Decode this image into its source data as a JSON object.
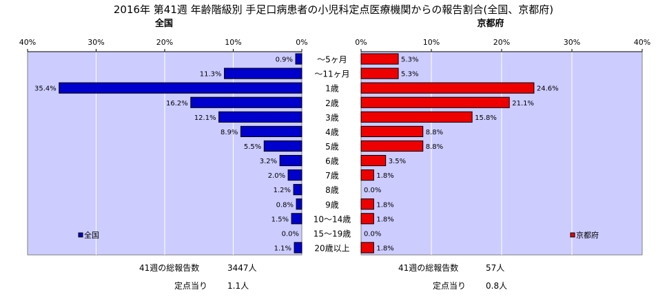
{
  "title": "2016年 第41週 年齢階級別 手足口病患者の小児科定点医療機関からの報告割合(全国、京都府)",
  "colors": {
    "plot_bg": "#ccccff",
    "national_bar": "#0000cc",
    "kyoto_bar": "#ee0000",
    "bar_edge": "#000000"
  },
  "chart_data": [
    {
      "type": "bar",
      "orientation": "horizontal",
      "direction": "right-to-left",
      "title": "全国",
      "legend": "全国",
      "legend_position": "bottom-left",
      "xlim": [
        0,
        40
      ],
      "x_ticks": [
        "40%",
        "30%",
        "20%",
        "10%",
        "0%"
      ],
      "categories": [
        "～5ヶ月",
        "～11ヶ月",
        "1歳",
        "2歳",
        "3歳",
        "4歳",
        "5歳",
        "6歳",
        "7歳",
        "8歳",
        "9歳",
        "10～14歳",
        "15～19歳",
        "20歳以上"
      ],
      "values": [
        0.9,
        11.3,
        35.4,
        16.2,
        12.1,
        8.9,
        5.5,
        3.2,
        2.0,
        1.2,
        0.8,
        1.5,
        0.0,
        1.1
      ],
      "labels": [
        "0.9%",
        "11.3%",
        "35.4%",
        "16.2%",
        "12.1%",
        "8.9%",
        "5.5%",
        "3.2%",
        "2.0%",
        "1.2%",
        "0.8%",
        "1.5%",
        "0.0%",
        "1.1%"
      ],
      "grid": true
    },
    {
      "type": "bar",
      "orientation": "horizontal",
      "direction": "left-to-right",
      "title": "京都府",
      "legend": "京都府",
      "legend_position": "bottom-right",
      "xlim": [
        0,
        40
      ],
      "x_ticks": [
        "0%",
        "10%",
        "20%",
        "30%",
        "40%"
      ],
      "categories": [
        "～5ヶ月",
        "～11ヶ月",
        "1歳",
        "2歳",
        "3歳",
        "4歳",
        "5歳",
        "6歳",
        "7歳",
        "8歳",
        "9歳",
        "10～14歳",
        "15～19歳",
        "20歳以上"
      ],
      "values": [
        5.3,
        5.3,
        24.6,
        21.1,
        15.8,
        8.8,
        8.8,
        3.5,
        1.8,
        0.0,
        1.8,
        1.8,
        0.0,
        1.8
      ],
      "labels": [
        "5.3%",
        "5.3%",
        "24.6%",
        "21.1%",
        "15.8%",
        "8.8%",
        "8.8%",
        "3.5%",
        "1.8%",
        "0.0%",
        "1.8%",
        "1.8%",
        "0.0%",
        "1.8%"
      ],
      "grid": true
    }
  ],
  "footer": {
    "national": {
      "total_label": "41週の総報告数",
      "total_value": "3447人",
      "per_label": "定点当り",
      "per_value": "1.1人"
    },
    "kyoto": {
      "total_label": "41週の総報告数",
      "total_value": "57人",
      "per_label": "定点当り",
      "per_value": "0.8人"
    }
  }
}
